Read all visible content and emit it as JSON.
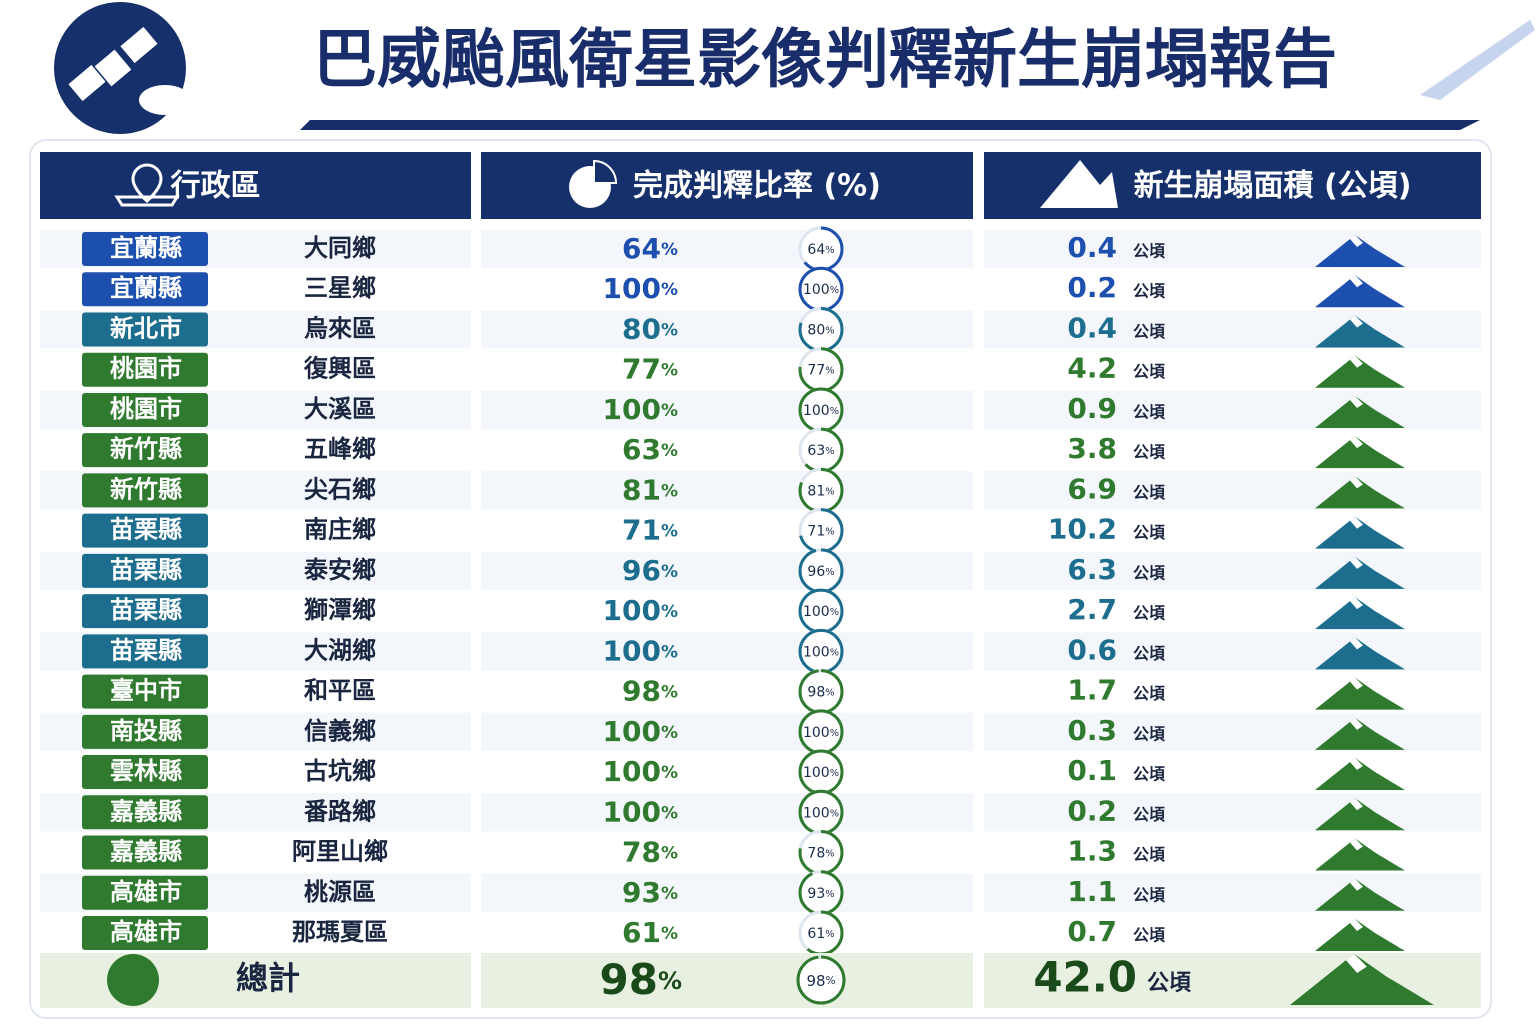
{
  "header": {
    "title": "巴威颱風衛星影像判釋新生崩塌報告"
  },
  "table": {
    "columns": [
      "行政區",
      "完成判釋比率 (%)",
      "新生崩塌面積 (公頃)"
    ],
    "percent_unit": "%",
    "area_unit": "公頃",
    "rows": [
      {
        "county": "宜蘭縣",
        "township": "大同鄉",
        "percent": 64,
        "area": "0.4",
        "color": "#1d4fae"
      },
      {
        "county": "宜蘭縣",
        "township": "三星鄉",
        "percent": 100,
        "area": "0.2",
        "color": "#1d4fae"
      },
      {
        "county": "新北市",
        "township": "烏來區",
        "percent": 80,
        "area": "0.4",
        "color": "#1d6e8e"
      },
      {
        "county": "桃園市",
        "township": "復興區",
        "percent": 77,
        "area": "4.2",
        "color": "#2f7a2f"
      },
      {
        "county": "桃園市",
        "township": "大溪區",
        "percent": 100,
        "area": "0.9",
        "color": "#2f7a2f"
      },
      {
        "county": "新竹縣",
        "township": "五峰鄉",
        "percent": 63,
        "area": "3.8",
        "color": "#2f7a2f"
      },
      {
        "county": "新竹縣",
        "township": "尖石鄉",
        "percent": 81,
        "area": "6.9",
        "color": "#2f7a2f"
      },
      {
        "county": "苗栗縣",
        "township": "南庄鄉",
        "percent": 71,
        "area": "10.2",
        "color": "#1d6e8e"
      },
      {
        "county": "苗栗縣",
        "township": "泰安鄉",
        "percent": 96,
        "area": "6.3",
        "color": "#1d6e8e"
      },
      {
        "county": "苗栗縣",
        "township": "獅潭鄉",
        "percent": 100,
        "area": "2.7",
        "color": "#1d6e8e"
      },
      {
        "county": "苗栗縣",
        "township": "大湖鄉",
        "percent": 100,
        "area": "0.6",
        "color": "#1d6e8e"
      },
      {
        "county": "臺中市",
        "township": "和平區",
        "percent": 98,
        "area": "1.7",
        "color": "#2f7a2f"
      },
      {
        "county": "南投縣",
        "township": "信義鄉",
        "percent": 100,
        "area": "0.3",
        "color": "#2f7a2f"
      },
      {
        "county": "雲林縣",
        "township": "古坑鄉",
        "percent": 100,
        "area": "0.1",
        "color": "#2f7a2f"
      },
      {
        "county": "嘉義縣",
        "township": "番路鄉",
        "percent": 100,
        "area": "0.2",
        "color": "#2f7a2f"
      },
      {
        "county": "嘉義縣",
        "township": "阿里山鄉",
        "percent": 78,
        "area": "1.3",
        "color": "#2f7a2f"
      },
      {
        "county": "高雄市",
        "township": "桃源區",
        "percent": 93,
        "area": "1.1",
        "color": "#2f7a2f"
      },
      {
        "county": "高雄市",
        "township": "那瑪夏區",
        "percent": 61,
        "area": "0.7",
        "color": "#2f7a2f"
      }
    ],
    "total": {
      "label": "總計",
      "percent": 98,
      "area": "42.0",
      "color": "#2f7a2f"
    }
  }
}
